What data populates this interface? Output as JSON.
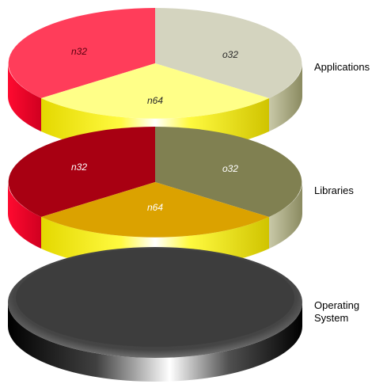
{
  "layers": [
    {
      "label": "Applications",
      "wedges": [
        {
          "label": "n32",
          "top": "#ff3d5a",
          "side": "#ff1a3c"
        },
        {
          "label": "o32",
          "top": "#d4d4bf",
          "side": "#9c9c78"
        },
        {
          "label": "n64",
          "top": "#ffff88",
          "side": "#f5f000"
        }
      ]
    },
    {
      "label": "Libraries",
      "wedges": [
        {
          "label": "n32",
          "top": "#a80012",
          "side": "#ff1a3c"
        },
        {
          "label": "o32",
          "top": "#808051",
          "side": "#b7b793"
        },
        {
          "label": "n64",
          "top": "#dba200",
          "side": "#f5f000"
        }
      ]
    },
    {
      "label_lines": [
        "Operating",
        "System"
      ],
      "top": "#3a3a3a",
      "side": "#9a9a9a"
    }
  ]
}
